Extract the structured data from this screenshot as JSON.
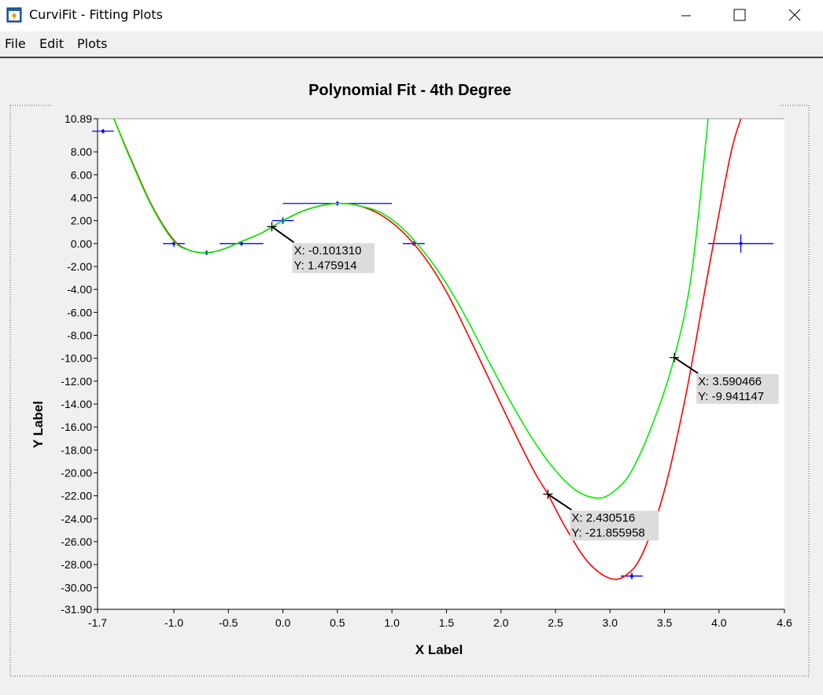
{
  "window": {
    "title": "CurviFit - Fitting Plots"
  },
  "menu": {
    "file": "File",
    "edit": "Edit",
    "plots": "Plots"
  },
  "chart_data": {
    "type": "line",
    "title": "Polynomial Fit - 4th Degree",
    "xlabel": "X Label",
    "ylabel": "Y Label",
    "xlim": [
      -1.7,
      4.6
    ],
    "ylim": [
      -31.9,
      10.89
    ],
    "x_ticks": [
      "-1.7",
      "-1.0",
      "-0.5",
      "0.0",
      "0.5",
      "1.0",
      "1.5",
      "2.0",
      "2.5",
      "3.0",
      "3.5",
      "4.0",
      "4.6"
    ],
    "x_tick_values": [
      -1.7,
      -1.0,
      -0.5,
      0.0,
      0.5,
      1.0,
      1.5,
      2.0,
      2.5,
      3.0,
      3.5,
      4.0,
      4.6
    ],
    "y_ticks": [
      "10.89",
      "8.00",
      "6.00",
      "4.00",
      "2.00",
      "0.00",
      "-2.00",
      "-4.00",
      "-6.00",
      "-8.00",
      "-10.00",
      "-12.00",
      "-14.00",
      "-16.00",
      "-18.00",
      "-20.00",
      "-22.00",
      "-24.00",
      "-26.00",
      "-28.00",
      "-30.00",
      "-31.90"
    ],
    "y_tick_values": [
      10.89,
      8,
      6,
      4,
      2,
      0,
      -2,
      -4,
      -6,
      -8,
      -10,
      -12,
      -14,
      -16,
      -18,
      -20,
      -22,
      -24,
      -26,
      -28,
      -30,
      -31.9
    ],
    "series": [
      {
        "color": "#ff0000",
        "x": [
          -1.55,
          -1.4,
          -1.2,
          -1.0,
          -0.85,
          -0.7,
          -0.55,
          -0.4,
          -0.2,
          0.0,
          0.2,
          0.4,
          0.55,
          0.7,
          0.9,
          1.1,
          1.3,
          1.5,
          1.7,
          1.9,
          2.1,
          2.3,
          2.43,
          2.6,
          2.8,
          3.0,
          3.15,
          3.3,
          3.5,
          3.7,
          3.9,
          4.1,
          4.2
        ],
        "y": [
          10.89,
          7.5,
          3.3,
          0.3,
          -0.6,
          -0.8,
          -0.5,
          0.1,
          0.9,
          2.0,
          2.9,
          3.4,
          3.5,
          3.3,
          2.5,
          1.0,
          -1.2,
          -4.2,
          -8.0,
          -12.0,
          -16.0,
          -19.8,
          -21.86,
          -24.9,
          -27.8,
          -29.2,
          -28.9,
          -27.0,
          -21.5,
          -13.0,
          -2.5,
          7.5,
          10.89
        ]
      },
      {
        "color": "#00ee00",
        "x": [
          -1.55,
          -1.4,
          -1.2,
          -1.0,
          -0.85,
          -0.7,
          -0.55,
          -0.4,
          -0.2,
          0.0,
          0.2,
          0.4,
          0.55,
          0.7,
          0.9,
          1.1,
          1.3,
          1.5,
          1.7,
          1.9,
          2.1,
          2.3,
          2.5,
          2.7,
          2.9,
          3.05,
          3.2,
          3.4,
          3.59,
          3.75,
          3.9
        ],
        "y": [
          10.89,
          7.4,
          3.2,
          0.2,
          -0.6,
          -0.8,
          -0.5,
          0.1,
          0.9,
          2.0,
          2.9,
          3.4,
          3.5,
          3.3,
          2.7,
          1.3,
          -0.8,
          -3.5,
          -6.8,
          -10.5,
          -14.0,
          -17.2,
          -19.8,
          -21.6,
          -22.2,
          -21.5,
          -19.8,
          -15.5,
          -9.94,
          -2.5,
          10.89
        ]
      }
    ],
    "error_points": [
      {
        "x": -1.65,
        "y": 9.8,
        "xerr": 0.1,
        "yerr": 0.2
      },
      {
        "x": -1.0,
        "y": 0.0,
        "xerr": 0.1,
        "yerr": 0.3
      },
      {
        "x": -0.7,
        "y": -0.8,
        "xerr": 0.05,
        "yerr": 0.2
      },
      {
        "x": -0.38,
        "y": 0.0,
        "xerr": 0.2,
        "yerr": 0.2
      },
      {
        "x": 0.0,
        "y": 2.0,
        "xerr": 0.1,
        "yerr": 0.3
      },
      {
        "x": 0.5,
        "y": 3.5,
        "xerr": 0.5,
        "yerr": 0.2
      },
      {
        "x": 1.2,
        "y": 0.0,
        "xerr": 0.1,
        "yerr": 0.2
      },
      {
        "x": 3.2,
        "y": -29.0,
        "xerr": 0.1,
        "yerr": 0.3
      },
      {
        "x": 4.2,
        "y": 0.0,
        "xerr": 0.3,
        "yerr": 0.8
      }
    ],
    "annotations": [
      {
        "px": -0.10131,
        "py": 1.475914,
        "line1": "X: -0.101310",
        "line2": "Y: 1.475914",
        "dx": 28,
        "dy": 34
      },
      {
        "px": 3.590466,
        "py": -9.941147,
        "line1": "X: 3.590466",
        "line2": "Y: -9.941147",
        "dx": 30,
        "dy": 34
      },
      {
        "px": 2.430516,
        "py": -21.855958,
        "line1": "X: 2.430516",
        "line2": "Y: -21.855958",
        "dx": 30,
        "dy": 34
      }
    ]
  }
}
